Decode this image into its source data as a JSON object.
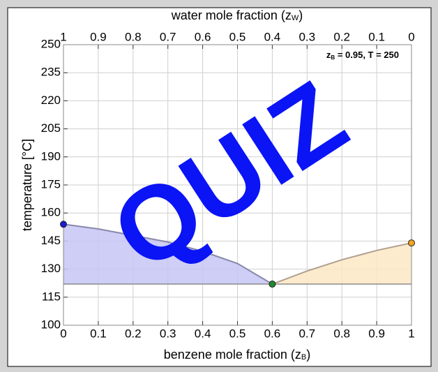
{
  "chart_data": {
    "type": "line",
    "xlabel": [
      "benzene mole fraction (z",
      "B",
      ")"
    ],
    "x2label": [
      "water mole fraction (z",
      "W",
      ")"
    ],
    "ylabel": "temperature [°C]",
    "xlim": [
      0,
      1
    ],
    "xticks": [
      0,
      0.1,
      0.2,
      0.3,
      0.4,
      0.5,
      0.6,
      0.7,
      0.8,
      0.9,
      1
    ],
    "x2lim": [
      1,
      0
    ],
    "x2ticks": [
      1,
      0.9,
      0.8,
      0.7,
      0.6,
      0.5,
      0.4,
      0.3,
      0.2,
      0.1,
      0
    ],
    "ylim": [
      100,
      250
    ],
    "yticks": [
      100,
      115,
      130,
      145,
      160,
      175,
      190,
      205,
      220,
      235,
      250
    ],
    "grid": true,
    "series": [
      {
        "x": [
          0,
          0.1,
          0.2,
          0.3,
          0.4,
          0.5,
          0.6
        ],
        "values": [
          154,
          151.5,
          148,
          144.5,
          139.5,
          133,
          122
        ],
        "color": "#8888aa",
        "fill": "#c6c6f6"
      },
      {
        "x": [
          0.6,
          0.7,
          0.8,
          0.9,
          1
        ],
        "values": [
          122,
          129,
          135,
          140,
          144
        ],
        "color": "#b0a090",
        "fill": "#fde7c4"
      }
    ],
    "reference_line": {
      "y": 122,
      "color": "#8c8c8c"
    },
    "points": [
      {
        "x": 0,
        "y": 154,
        "color": "#1c1cd0"
      },
      {
        "x": 0.6,
        "y": 122,
        "color": "#1f8a2c"
      },
      {
        "x": 1,
        "y": 144,
        "color": "#f5a51e"
      }
    ],
    "annotation": [
      "z",
      "B",
      " = 0.95, T = 250"
    ],
    "watermark": {
      "text": "QUIZ",
      "color": "#0a14f5"
    }
  }
}
